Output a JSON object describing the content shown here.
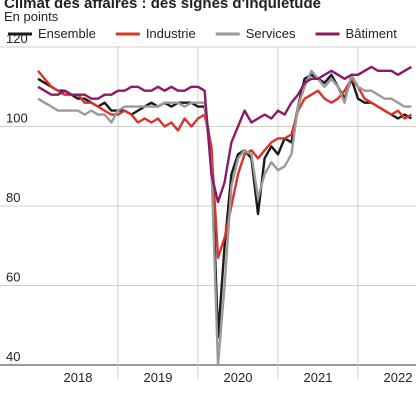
{
  "chart_data": {
    "type": "line",
    "title": "Climat des affaires : des signes d'inquiétude",
    "subtitle": "En points",
    "x": [
      2018,
      2018.083,
      2018.167,
      2018.25,
      2018.333,
      2018.417,
      2018.5,
      2018.583,
      2018.667,
      2018.75,
      2018.833,
      2018.917,
      2019,
      2019.083,
      2019.167,
      2019.25,
      2019.333,
      2019.417,
      2019.5,
      2019.583,
      2019.667,
      2019.75,
      2019.833,
      2019.917,
      2020,
      2020.083,
      2020.167,
      2020.25,
      2020.333,
      2020.417,
      2020.5,
      2020.583,
      2020.667,
      2020.75,
      2020.833,
      2020.917,
      2021,
      2021.083,
      2021.167,
      2021.25,
      2021.333,
      2021.417,
      2021.5,
      2021.583,
      2021.667,
      2021.75,
      2021.833,
      2021.917,
      2022,
      2022.083,
      2022.167,
      2022.25,
      2022.333,
      2022.417,
      2022.5,
      2022.583,
      2022.667
    ],
    "series": [
      {
        "name": "Ensemble",
        "color": "#1a1a1a",
        "values": [
          112,
          111,
          110,
          109,
          109,
          108,
          107,
          107,
          106,
          105,
          106,
          104,
          104,
          104,
          103,
          104,
          105,
          106,
          105,
          106,
          105,
          106,
          106,
          106,
          105,
          105,
          94,
          47,
          70,
          88,
          93,
          94,
          92,
          78,
          92,
          95,
          93,
          97,
          96,
          105,
          112,
          113,
          112,
          111,
          113,
          110,
          107,
          112,
          107,
          106,
          106,
          105,
          104,
          103,
          102,
          103,
          102
        ]
      },
      {
        "name": "Industrie",
        "color": "#d9342b",
        "values": [
          114,
          112,
          110,
          109,
          108,
          108,
          108,
          106,
          106,
          105,
          104,
          103,
          103,
          104,
          103,
          101,
          102,
          101,
          102,
          100,
          101,
          99,
          102,
          100,
          102,
          103,
          95,
          67,
          72,
          80,
          88,
          93,
          94,
          92,
          94,
          96,
          97,
          97,
          98,
          104,
          107,
          108,
          109,
          107,
          106,
          107,
          109,
          112,
          110,
          107,
          106,
          105,
          104,
          103,
          104,
          102,
          103
        ]
      },
      {
        "name": "Services",
        "color": "#9a9a9a",
        "values": [
          107,
          106,
          105,
          104,
          104,
          104,
          104,
          103,
          104,
          103,
          103,
          101,
          104,
          105,
          105,
          105,
          105,
          105,
          105,
          106,
          106,
          106,
          105,
          106,
          106,
          106,
          90,
          40,
          60,
          85,
          92,
          94,
          93,
          82,
          88,
          91,
          89,
          90,
          93,
          105,
          110,
          114,
          112,
          110,
          112,
          110,
          106,
          113,
          110,
          109,
          109,
          108,
          107,
          107,
          106,
          105,
          105
        ]
      },
      {
        "name": "Bâtiment",
        "color": "#8b1a6b",
        "values": [
          110,
          109,
          108,
          108,
          109,
          108,
          108,
          108,
          107,
          107,
          108,
          108,
          109,
          109,
          110,
          110,
          109,
          109,
          110,
          109,
          110,
          109,
          109,
          110,
          110,
          109,
          88,
          81,
          86,
          96,
          100,
          104,
          101,
          102,
          103,
          102,
          104,
          103,
          106,
          108,
          111,
          112,
          112,
          113,
          114,
          113,
          112,
          113,
          113,
          114,
          115,
          114,
          114,
          114,
          113,
          114,
          115
        ]
      }
    ],
    "xlim": [
      2018,
      2022.725
    ],
    "xticks": [
      {
        "value": 2018.5,
        "label": "2018"
      },
      {
        "value": 2019.5,
        "label": "2019"
      },
      {
        "value": 2020.5,
        "label": "2020"
      },
      {
        "value": 2021.5,
        "label": "2021"
      },
      {
        "value": 2022.5,
        "label": "2022"
      }
    ],
    "xgrid": [
      2019,
      2020,
      2021,
      2022
    ],
    "ylim": [
      40,
      120
    ],
    "yticks": [
      40,
      60,
      80,
      100,
      120
    ],
    "grid": true
  }
}
